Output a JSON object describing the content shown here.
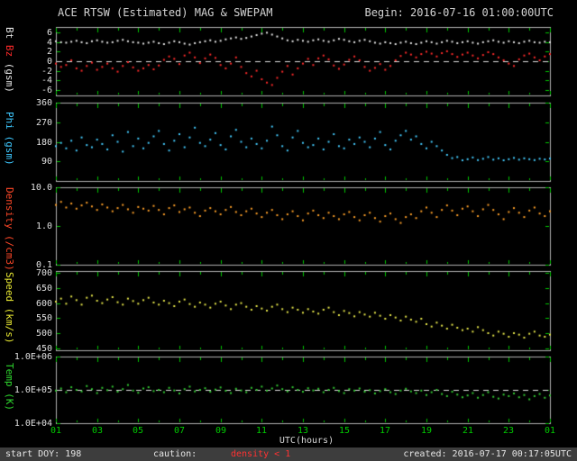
{
  "header": {
    "title": "ACE RTSW (Estimated) MAG & SWEPAM",
    "begin": "Begin: 2016-07-16 01:00:00UTC"
  },
  "footer": {
    "start_doy": "start DOY: 198",
    "caution_label": "caution:",
    "caution_value": "density < 1",
    "created": "created: 2016-07-17 00:17:05UTC"
  },
  "chart_data": {
    "type": "scatter",
    "title": "ACE RTSW (Estimated) MAG & SWEPAM",
    "x_range": [
      1,
      25
    ],
    "x_start": 1,
    "x_step": 0.25,
    "x_axis": {
      "title": "UTC(hours)",
      "ticks": [
        1,
        3,
        5,
        7,
        9,
        11,
        13,
        15,
        17,
        19,
        21,
        23,
        25
      ],
      "labels": [
        "01",
        "03",
        "05",
        "07",
        "09",
        "11",
        "13",
        "15",
        "17",
        "19",
        "21",
        "23",
        "01"
      ],
      "label_color": "#00cc00"
    },
    "panels": [
      {
        "name": "mag",
        "label_parts": [
          {
            "text": "Bt",
            "color": "#e6e6e6"
          },
          {
            "text": "Bz",
            "color": "#ff2a2a"
          },
          {
            "text": "(gsm)",
            "color": "#e6e6e6"
          }
        ],
        "log": false,
        "ylim": [
          -7.2,
          7.2
        ],
        "yticks": [
          {
            "v": 6,
            "label": "6"
          },
          {
            "v": 4,
            "label": "4"
          },
          {
            "v": 2,
            "label": "2"
          },
          {
            "v": 0,
            "label": "0"
          },
          {
            "v": -2,
            "label": "-2"
          },
          {
            "v": -4,
            "label": "-4"
          },
          {
            "v": -6,
            "label": "-6"
          }
        ],
        "dashed_y": 0,
        "series": [
          {
            "name": "Bt",
            "color": "#e8e8e8",
            "values": [
              4.2,
              4.0,
              3.9,
              4.1,
              4.3,
              4.0,
              3.8,
              4.2,
              4.4,
              4.1,
              3.9,
              4.0,
              4.3,
              4.5,
              4.2,
              4.0,
              3.9,
              3.7,
              3.9,
              4.1,
              3.8,
              3.6,
              3.9,
              4.2,
              4.0,
              3.7,
              3.5,
              3.8,
              4.0,
              4.2,
              4.4,
              4.1,
              4.3,
              4.6,
              4.8,
              5.0,
              4.7,
              4.9,
              5.2,
              5.5,
              5.8,
              6.0,
              5.6,
              5.2,
              4.8,
              4.4,
              4.2,
              4.5,
              4.3,
              4.1,
              4.4,
              4.6,
              4.3,
              4.1,
              4.4,
              4.7,
              4.5,
              4.2,
              4.0,
              4.3,
              4.5,
              4.2,
              3.9,
              3.7,
              4.0,
              3.8,
              3.6,
              3.9,
              4.1,
              3.8,
              3.6,
              3.9,
              4.2,
              4.0,
              3.7,
              4.0,
              4.3,
              4.1,
              3.8,
              4.0,
              4.2,
              3.9,
              3.7,
              4.0,
              4.2,
              4.4,
              4.1,
              3.9,
              4.2,
              4.0,
              3.8,
              4.1,
              4.3,
              4.0,
              3.9,
              4.1,
              4.0
            ]
          },
          {
            "name": "Bz",
            "color": "#ff2a2a",
            "values": [
              -0.5,
              -1.2,
              -0.8,
              0.2,
              -1.5,
              -2.0,
              -1.0,
              -0.3,
              -1.8,
              -1.2,
              -0.5,
              -1.5,
              -2.2,
              -1.0,
              -0.2,
              -1.3,
              -2.0,
              -1.5,
              -0.8,
              -1.7,
              -0.9,
              0.3,
              1.0,
              0.5,
              -0.6,
              1.2,
              1.8,
              0.8,
              -0.4,
              0.6,
              1.4,
              0.7,
              -0.8,
              -1.5,
              -0.5,
              0.8,
              -1.2,
              -2.5,
              -3.2,
              -2.0,
              -3.8,
              -4.5,
              -5.0,
              -3.5,
              -2.2,
              -1.0,
              -2.8,
              -1.5,
              -0.5,
              0.5,
              -0.8,
              0.6,
              1.2,
              0.4,
              -0.9,
              -1.6,
              -0.7,
              0.3,
              1.0,
              0.2,
              -1.2,
              -2.0,
              -1.4,
              -0.6,
              -1.8,
              -1.0,
              0.2,
              1.1,
              1.8,
              1.4,
              0.8,
              1.5,
              2.0,
              1.6,
              1.0,
              1.7,
              2.1,
              1.5,
              0.9,
              1.4,
              1.8,
              1.2,
              0.6,
              1.3,
              1.9,
              1.5,
              0.8,
              0.2,
              -0.5,
              -1.0,
              0.4,
              1.2,
              1.6,
              0.8,
              0.2,
              1.0,
              1.5
            ]
          }
        ]
      },
      {
        "name": "phi",
        "label_parts": [
          {
            "text": "Phi",
            "color": "#3ec8ff"
          },
          {
            "text": "(gsm)",
            "color": "#3ec8ff"
          }
        ],
        "log": false,
        "ylim": [
          0,
          360
        ],
        "yticks": [
          {
            "v": 360,
            "label": "360"
          },
          {
            "v": 270,
            "label": "270"
          },
          {
            "v": 180,
            "label": "180"
          },
          {
            "v": 90,
            "label": "90"
          }
        ],
        "dashed_y": null,
        "series": [
          {
            "name": "Phi",
            "color": "#44ccff",
            "values": [
              160,
              175,
              150,
              185,
              140,
              200,
              165,
              155,
              190,
              170,
              145,
              210,
              180,
              135,
              225,
              160,
              195,
              150,
              175,
              205,
              230,
              170,
              140,
              185,
              215,
              155,
              200,
              245,
              175,
              160,
              190,
              220,
              165,
              145,
              205,
              235,
              180,
              155,
              195,
              170,
              150,
              185,
              250,
              210,
              160,
              140,
              200,
              230,
              175,
              155,
              165,
              195,
              145,
              180,
              215,
              160,
              150,
              190,
              170,
              200,
              180,
              155,
              195,
              225,
              165,
              145,
              185,
              210,
              230,
              190,
              205,
              170,
              150,
              180,
              160,
              140,
              120,
              105,
              110,
              95,
              100,
              108,
              96,
              102,
              110,
              98,
              104,
              95,
              100,
              106,
              98,
              104,
              100,
              96,
              102,
              99,
              103
            ]
          }
        ]
      },
      {
        "name": "density",
        "label_parts": [
          {
            "text": "Density",
            "color": "#ff4828"
          },
          {
            "text": "(/cm3)",
            "color": "#ff4828"
          }
        ],
        "log": true,
        "ylim": [
          0.1,
          10
        ],
        "yticks": [
          {
            "v": 10,
            "label": "10.0"
          },
          {
            "v": 1,
            "label": "1.0"
          },
          {
            "v": 0.1,
            "label": "0.1"
          }
        ],
        "dashed_y": null,
        "series": [
          {
            "name": "Density",
            "color": "#ffa028",
            "values": [
              3.5,
              4.2,
              3.0,
              3.8,
              2.8,
              3.4,
              4.0,
              3.2,
              2.6,
              3.6,
              3.0,
              2.4,
              2.9,
              3.5,
              2.7,
              2.2,
              3.1,
              2.8,
              2.5,
              3.3,
              2.6,
              2.0,
              2.9,
              3.4,
              2.3,
              2.7,
              3.0,
              2.2,
              1.8,
              2.5,
              2.9,
              2.4,
              2.0,
              2.6,
              3.1,
              2.3,
              1.9,
              2.4,
              2.8,
              2.1,
              1.7,
              2.2,
              2.6,
              1.9,
              1.5,
              2.0,
              2.4,
              1.8,
              1.4,
              2.1,
              2.5,
              1.9,
              1.6,
              2.2,
              1.8,
              1.5,
              2.0,
              2.3,
              1.7,
              1.4,
              1.9,
              2.2,
              1.6,
              1.3,
              1.8,
              2.1,
              1.5,
              1.2,
              1.7,
              2.0,
              1.6,
              2.4,
              3.0,
              2.2,
              1.7,
              2.6,
              3.4,
              2.5,
              1.9,
              2.8,
              3.2,
              2.4,
              1.8,
              2.7,
              3.5,
              2.6,
              2.0,
              1.5,
              2.3,
              2.9,
              2.2,
              1.7,
              2.5,
              3.0,
              2.1,
              1.8,
              2.4
            ]
          }
        ]
      },
      {
        "name": "speed",
        "label_parts": [
          {
            "text": "Speed",
            "color": "#e8e832"
          },
          {
            "text": "(km/s)",
            "color": "#e8e832"
          }
        ],
        "log": false,
        "ylim": [
          443,
          707
        ],
        "yticks": [
          {
            "v": 700,
            "label": "700"
          },
          {
            "v": 650,
            "label": "650"
          },
          {
            "v": 600,
            "label": "600"
          },
          {
            "v": 550,
            "label": "550"
          },
          {
            "v": 500,
            "label": "500"
          },
          {
            "v": 450,
            "label": "450"
          }
        ],
        "dashed_y": null,
        "series": [
          {
            "name": "Speed",
            "color": "#e8e84a",
            "values": [
              605,
              615,
              598,
              622,
              610,
              595,
              618,
              625,
              608,
              600,
              612,
              620,
              603,
              595,
              615,
              607,
              598,
              610,
              618,
              602,
              595,
              608,
              600,
              590,
              605,
              612,
              597,
              588,
              602,
              595,
              585,
              598,
              605,
              592,
              580,
              595,
              600,
              588,
              578,
              590,
              582,
              575,
              588,
              595,
              580,
              570,
              585,
              578,
              568,
              580,
              572,
              565,
              578,
              585,
              570,
              560,
              574,
              567,
              556,
              570,
              562,
              555,
              568,
              558,
              548,
              560,
              552,
              542,
              555,
              545,
              538,
              548,
              530,
              522,
              535,
              525,
              515,
              528,
              518,
              510,
              515,
              505,
              520,
              510,
              500,
              492,
              505,
              498,
              488,
              500,
              495,
              485,
              498,
              505,
              492,
              488,
              495
            ]
          }
        ]
      },
      {
        "name": "temp",
        "label_parts": [
          {
            "text": "Temp",
            "color": "#2ed62e"
          },
          {
            "text": "(K)",
            "color": "#2ed62e"
          }
        ],
        "log": true,
        "ylim": [
          10000,
          1000000
        ],
        "yticks": [
          {
            "v": 1000000,
            "label": "1.0E+06"
          },
          {
            "v": 100000,
            "label": "1.0E+05"
          },
          {
            "v": 10000,
            "label": "1.0E+04"
          }
        ],
        "dashed_y": 100000,
        "series": [
          {
            "name": "Temp",
            "color": "#33cc33",
            "values": [
              95000,
              110000,
              85000,
              120000,
              100000,
              90000,
              130000,
              105000,
              80000,
              115000,
              98000,
              125000,
              88000,
              105000,
              140000,
              95000,
              82000,
              110000,
              120000,
              92000,
              100000,
              85000,
              115000,
              96000,
              78000,
              105000,
              125000,
              90000,
              100000,
              112000,
              88000,
              102000,
              118000,
              94000,
              80000,
              108000,
              96000,
              85000,
              115000,
              100000,
              125000,
              95000,
              110000,
              135000,
              105000,
              90000,
              120000,
              100000,
              88000,
              112000,
              96000,
              108000,
              85000,
              100000,
              115000,
              92000,
              80000,
              105000,
              95000,
              110000,
              88000,
              98000,
              78000,
              92000,
              105000,
              85000,
              75000,
              95000,
              108000,
              90000,
              80000,
              95000,
              70000,
              85000,
              100000,
              75000,
              65000,
              88000,
              72000,
              60000,
              68000,
              80000,
              58000,
              70000,
              85000,
              62000,
              55000,
              72000,
              65000,
              78000,
              60000,
              70000,
              52000,
              65000,
              75000,
              58000,
              68000
            ]
          }
        ]
      }
    ]
  }
}
